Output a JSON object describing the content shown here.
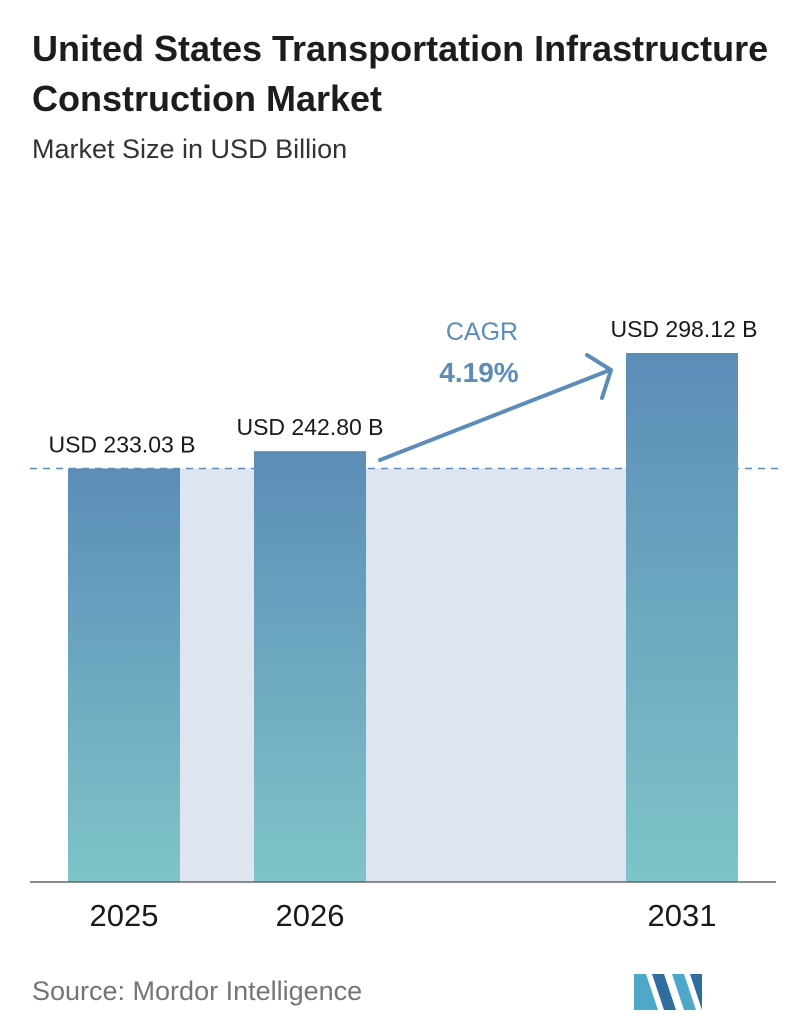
{
  "title": "United States Transportation Infrastructure Construction Market",
  "subtitle": "Market Size in USD Billion",
  "source": "Source:  Mordor Intelligence",
  "cagr": {
    "label": "CAGR",
    "value": "4.19%"
  },
  "colors": {
    "bar_top": "#5b8db8",
    "bar_bottom": "#7ec4c8",
    "band": "#dde6f0",
    "cagr": "#5b8db8",
    "axis": "#666666",
    "logo": "#4fa7c9"
  },
  "chart_data": {
    "type": "bar",
    "title": "United States Transportation Infrastructure Construction Market",
    "ylabel": "Market Size in USD Billion",
    "categories": [
      "2025",
      "2026",
      "2031"
    ],
    "values": [
      233.03,
      242.8,
      298.12
    ],
    "data_labels": [
      "USD 233.03 B",
      "USD 242.80 B",
      "USD 298.12 B"
    ],
    "reference_line": 233.03,
    "ylim": [
      0,
      310
    ],
    "grid": false
  }
}
